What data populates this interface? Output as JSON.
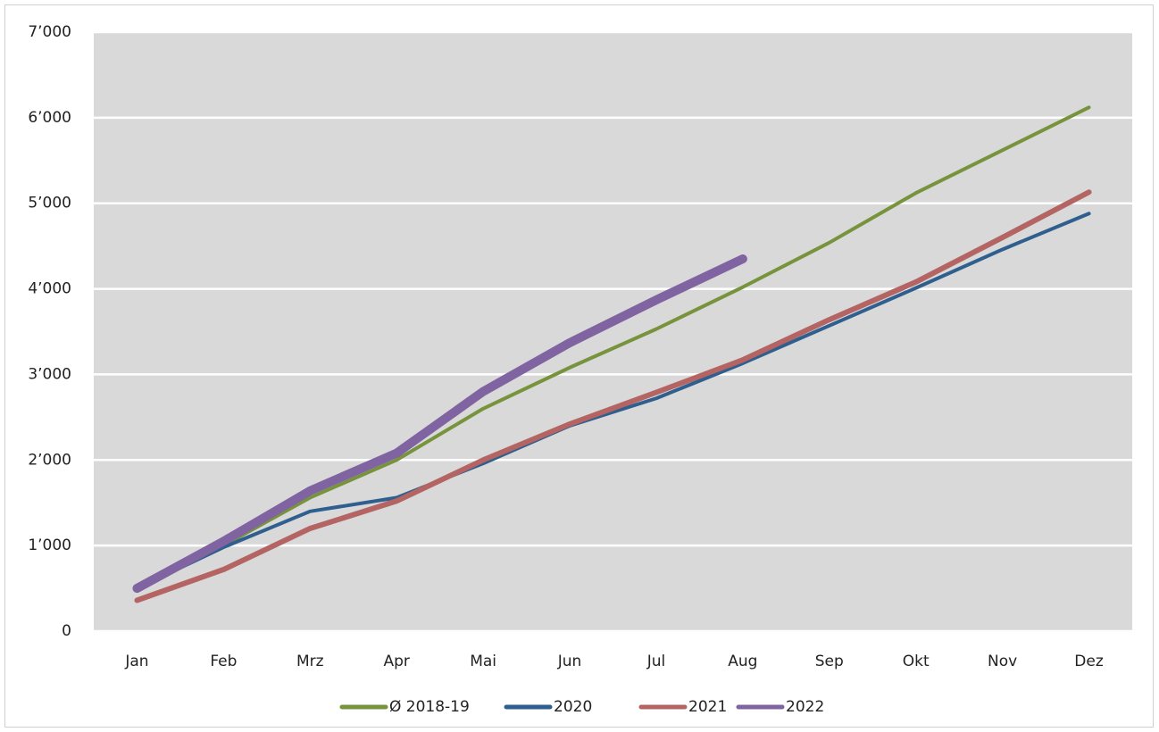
{
  "chart_data": {
    "type": "line",
    "categories": [
      "Jan",
      "Feb",
      "Mrz",
      "Apr",
      "Mai",
      "Jun",
      "Jul",
      "Aug",
      "Sep",
      "Okt",
      "Nov",
      "Dez"
    ],
    "series": [
      {
        "name": "Ø 2018-19",
        "color": "#77933c",
        "values": [
          490,
          1000,
          1560,
          2000,
          2600,
          3080,
          3530,
          4020,
          4540,
          5120,
          5620,
          6120
        ]
      },
      {
        "name": "2020",
        "color": "#2e5f8e",
        "values": [
          500,
          980,
          1400,
          1560,
          1960,
          2400,
          2720,
          3130,
          3570,
          4010,
          4460,
          4880
        ]
      },
      {
        "name": "2021",
        "color": "#b46462",
        "values": [
          360,
          720,
          1200,
          1520,
          2000,
          2420,
          2790,
          3170,
          3640,
          4080,
          4600,
          5130
        ]
      },
      {
        "name": "2022",
        "color": "#8064a2",
        "values": [
          500,
          1050,
          1640,
          2080,
          2800,
          3370,
          3870,
          4350,
          null,
          null,
          null,
          null
        ]
      }
    ],
    "ylim": [
      0,
      7000
    ],
    "yticks": [
      0,
      {
        "value": 1000,
        "label": "1’000"
      },
      {
        "value": 2000,
        "label": "2’000"
      },
      {
        "value": 3000,
        "label": "3’000"
      },
      {
        "value": 4000,
        "label": "4’000"
      },
      {
        "value": 5000,
        "label": "5’000"
      },
      {
        "value": 6000,
        "label": "6’000"
      },
      {
        "value": 7000,
        "label": "7’000"
      }
    ],
    "grid": true,
    "legend": "bottom"
  }
}
